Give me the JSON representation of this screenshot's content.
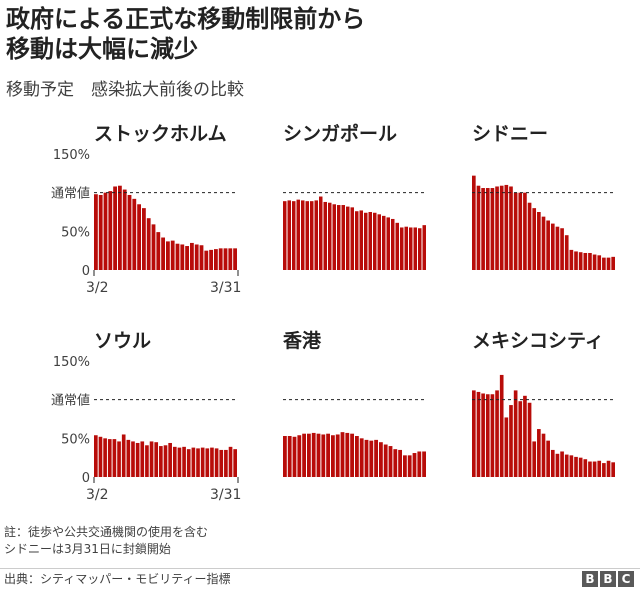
{
  "header": {
    "title_line1": "政府による正式な移動制限前から",
    "title_line2": "移動は大幅に減少",
    "subtitle": "移動予定　感染拡大前後の比較"
  },
  "colors": {
    "bar": "#b80c09",
    "axis_text": "#404040",
    "reference_line": "#222222"
  },
  "chart_data": [
    {
      "type": "bar",
      "title": "ストックホルム",
      "ylim": [
        0,
        150
      ],
      "ytick_labels": [
        "150%",
        "通常値",
        "50%",
        "0"
      ],
      "reference_value": 100,
      "xtick_labels": [
        "3/2",
        "3/31"
      ],
      "values": [
        98,
        97,
        100,
        102,
        108,
        109,
        104,
        97,
        92,
        85,
        80,
        67,
        59,
        49,
        42,
        37,
        38,
        34,
        33,
        31,
        35,
        33,
        32,
        25,
        26,
        27,
        28,
        28,
        28,
        28
      ]
    },
    {
      "type": "bar",
      "title": "シンガポール",
      "ylim": [
        0,
        150
      ],
      "ytick_labels": [],
      "reference_value": 100,
      "xtick_labels": [],
      "values": [
        89,
        90,
        89,
        91,
        90,
        89,
        89,
        90,
        95,
        88,
        87,
        85,
        84,
        84,
        82,
        81,
        76,
        77,
        74,
        75,
        74,
        72,
        70,
        68,
        66,
        61,
        55,
        56,
        55,
        55,
        54,
        58
      ]
    },
    {
      "type": "bar",
      "title": "シドニー",
      "ylim": [
        0,
        150
      ],
      "ytick_labels": [],
      "reference_value": 100,
      "xtick_labels": [],
      "values": [
        122,
        109,
        106,
        106,
        106,
        108,
        109,
        110,
        108,
        100,
        100,
        100,
        87,
        80,
        75,
        69,
        64,
        60,
        56,
        54,
        45,
        26,
        24,
        23,
        22,
        22,
        20,
        19,
        16,
        16,
        17
      ]
    },
    {
      "type": "bar",
      "title": "ソウル",
      "ylim": [
        0,
        150
      ],
      "ytick_labels": [
        "150%",
        "通常値",
        "50%",
        "0"
      ],
      "reference_value": 100,
      "xtick_labels": [
        "3/2",
        "3/31"
      ],
      "values": [
        54,
        52,
        50,
        49,
        49,
        46,
        55,
        48,
        46,
        44,
        46,
        41,
        46,
        45,
        40,
        41,
        44,
        39,
        38,
        39,
        36,
        38,
        37,
        38,
        37,
        38,
        37,
        35,
        35,
        39,
        36
      ]
    },
    {
      "type": "bar",
      "title": "香港",
      "ylim": [
        0,
        150
      ],
      "ytick_labels": [],
      "reference_value": 100,
      "xtick_labels": [],
      "values": [
        53,
        53,
        52,
        54,
        56,
        56,
        57,
        56,
        55,
        56,
        54,
        55,
        58,
        57,
        56,
        53,
        50,
        48,
        47,
        48,
        45,
        42,
        40,
        36,
        35,
        28,
        28,
        31,
        33,
        33
      ]
    },
    {
      "type": "bar",
      "title": "メキシコシティ",
      "ylim": [
        0,
        150
      ],
      "ytick_labels": [],
      "reference_value": 100,
      "xtick_labels": [],
      "values": [
        112,
        110,
        108,
        107,
        107,
        112,
        132,
        77,
        93,
        112,
        98,
        105,
        96,
        46,
        62,
        56,
        47,
        35,
        30,
        33,
        29,
        28,
        26,
        25,
        23,
        20,
        20,
        21,
        18,
        21,
        19
      ]
    }
  ],
  "footer": {
    "note_line1": "註：徒歩や公共交通機関の使用を含む",
    "note_line2": "シドニーは3月31日に封鎖開始",
    "source": "出典：シティマッパー・モビリティー指標",
    "logo_letters": [
      "B",
      "B",
      "C"
    ]
  }
}
